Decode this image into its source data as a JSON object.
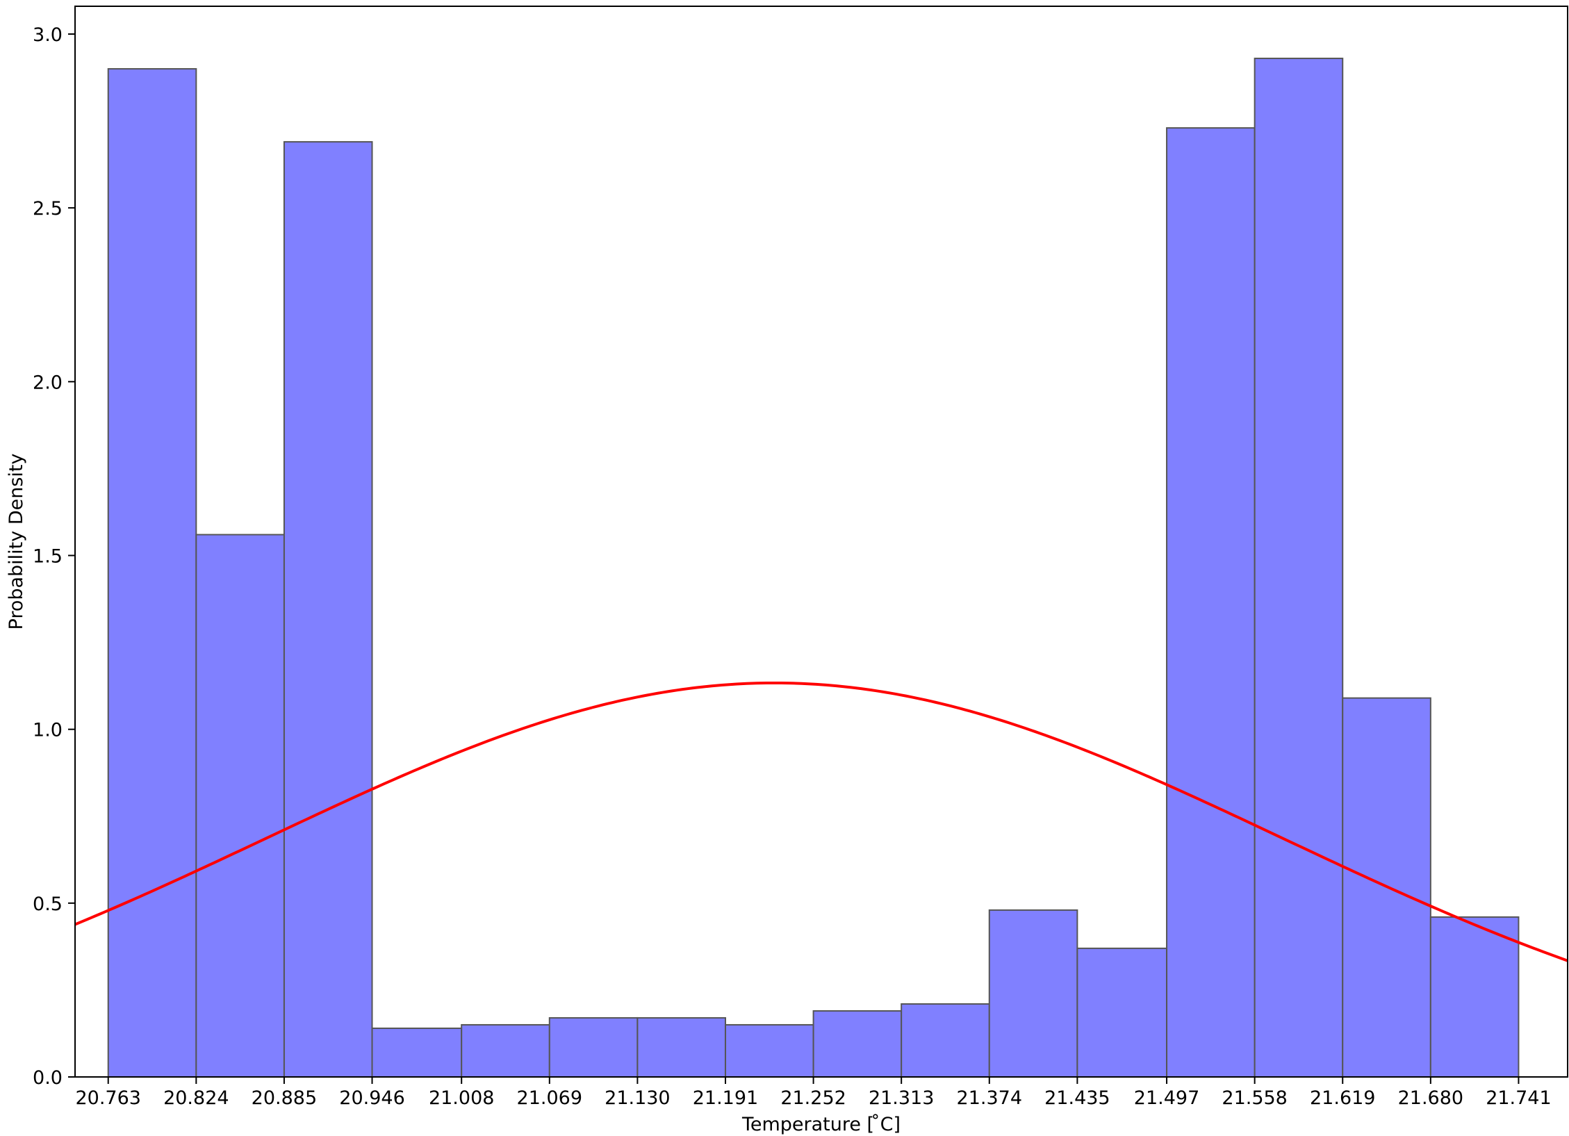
{
  "chart_data": {
    "type": "bar",
    "title": "",
    "xlabel": "Temperature [ ̊C]",
    "ylabel": "Probability Density",
    "bin_edges": [
      20.763,
      20.824,
      20.885,
      20.946,
      21.008,
      21.069,
      21.13,
      21.191,
      21.252,
      21.313,
      21.374,
      21.435,
      21.497,
      21.558,
      21.619,
      21.68,
      21.741
    ],
    "densities": [
      2.9,
      1.56,
      2.69,
      0.14,
      0.15,
      0.17,
      0.17,
      0.15,
      0.19,
      0.21,
      0.48,
      0.37,
      2.73,
      2.93,
      1.09,
      0.46
    ],
    "x_tick_labels": [
      "20.763",
      "20.824",
      "20.885",
      "20.946",
      "21.008",
      "21.069",
      "21.130",
      "21.191",
      "21.252",
      "21.313",
      "21.374",
      "21.435",
      "21.497",
      "21.558",
      "21.619",
      "21.680",
      "21.741"
    ],
    "y_ticks": [
      0.0,
      0.5,
      1.0,
      1.5,
      2.0,
      2.5,
      3.0
    ],
    "y_tick_labels": [
      "0.0",
      "0.5",
      "1.0",
      "1.5",
      "2.0",
      "2.5",
      "3.0"
    ],
    "xlim": [
      20.74,
      21.775
    ],
    "ylim": [
      0,
      3.08
    ],
    "grid": false,
    "normal_fit": {
      "mean": 21.225,
      "std": 0.352
    },
    "colors": {
      "bar_fill": "#8080ff",
      "bar_edge": "#555555",
      "fit_line": "#ff0000",
      "axis": "#000000"
    }
  }
}
